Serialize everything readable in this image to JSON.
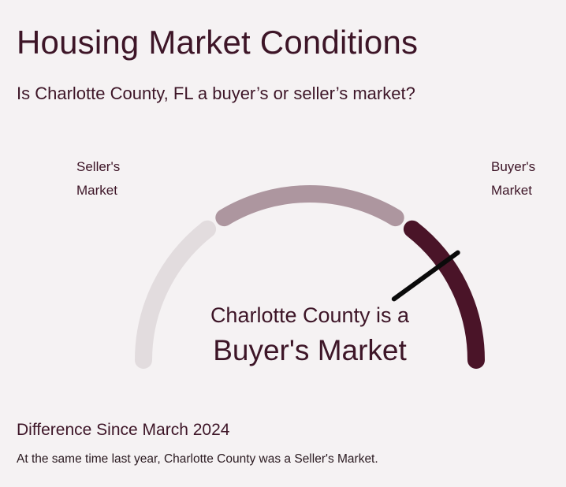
{
  "page": {
    "title": "Housing Market Conditions",
    "question": "Is Charlotte County, FL a buyer’s or seller’s market?"
  },
  "chart_data": {
    "type": "gauge",
    "left_label": "Seller's\nMarket",
    "right_label": "Buyer's\nMarket",
    "segments": [
      {
        "color": "#e2dcde"
      },
      {
        "color": "#ad969f"
      },
      {
        "color": "#4a1428"
      }
    ],
    "needle_value": 0.8,
    "needle_color": "#0a0a0a"
  },
  "verdict": {
    "prefix": "Charlotte County is a",
    "result": "Buyer's Market"
  },
  "difference": {
    "heading": "Difference Since March 2024",
    "text": "At the same time last year, Charlotte County was a Seller's Market."
  }
}
